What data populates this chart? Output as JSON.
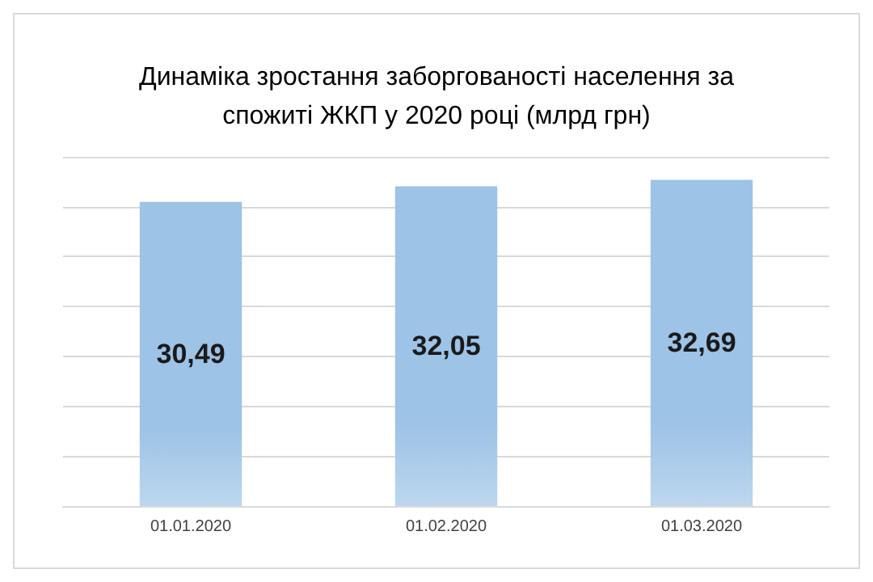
{
  "chart_data": {
    "type": "bar",
    "title": "Динаміка зростання заборгованості населення за\nспожиті ЖКП у 2020 році (млрд грн)",
    "categories": [
      "01.01.2020",
      "01.02.2020",
      "01.03.2020"
    ],
    "values": [
      30.49,
      32.05,
      32.69
    ],
    "value_labels": [
      "30,49",
      "32,05",
      "32,69"
    ],
    "color": "#9dc3e6",
    "ylim": [
      0,
      35
    ],
    "yticks": [
      {
        "value": 0,
        "label": null
      },
      {
        "value": 5,
        "label": null
      },
      {
        "value": 10,
        "label": null
      },
      {
        "value": 15,
        "label": null
      },
      {
        "value": 20,
        "label": null
      },
      {
        "value": 25,
        "label": null
      },
      {
        "value": 30,
        "label": null
      },
      {
        "value": 35,
        "label": null
      }
    ],
    "tick_labels": "x",
    "grid": "y"
  }
}
